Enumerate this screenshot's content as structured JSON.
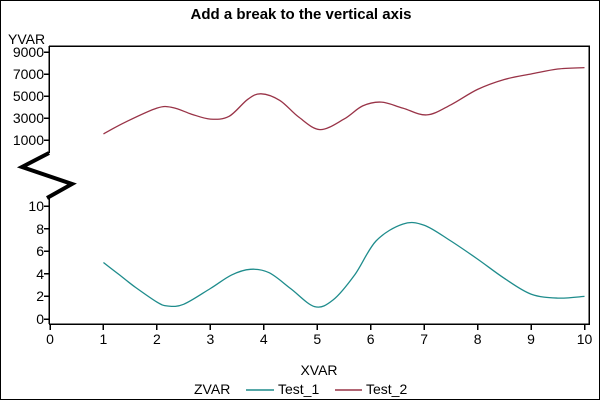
{
  "title": "Add a break to the vertical axis",
  "y_axis_title": "YVAR",
  "x_axis_title": "XVAR",
  "legend": {
    "title": "ZVAR",
    "entries": [
      {
        "label": "Test_1",
        "color": "#1E8C8C"
      },
      {
        "label": "Test_2",
        "color": "#993347"
      }
    ]
  },
  "colors": {
    "background": "#FFFFFF",
    "frame": "#000000",
    "text": "#000000",
    "series_test_1": "#1E8C8C",
    "series_test_2": "#993347"
  },
  "icons": {
    "axis_break": "axis-break-zigzag-icon"
  },
  "chart_data": {
    "type": "line",
    "title": "Add a break to the vertical axis",
    "xlabel": "XVAR",
    "ylabel": "YVAR",
    "legend_title": "ZVAR",
    "legend_position": "bottom",
    "grid": false,
    "x_ticks": [
      0,
      1,
      2,
      3,
      4,
      5,
      6,
      7,
      8,
      9,
      10
    ],
    "xlim": [
      0,
      10
    ],
    "axis_break": {
      "between_labels": [
        "1000",
        "10"
      ],
      "icon": "axis-break-zigzag-icon"
    },
    "upper_axis": {
      "ticks": [
        1000,
        3000,
        5000,
        7000,
        9000
      ],
      "range": [
        1000,
        9000
      ]
    },
    "lower_axis": {
      "ticks": [
        0,
        2,
        4,
        6,
        8,
        10
      ],
      "range": [
        0,
        10
      ]
    },
    "series": [
      {
        "name": "Test_1",
        "axis": "lower",
        "color": "#1E8C8C",
        "x": [
          1,
          1.3,
          1.6,
          2.0,
          2.2,
          2.5,
          3.0,
          3.4,
          3.75,
          4.1,
          4.5,
          4.95,
          5.3,
          5.7,
          6.1,
          6.6,
          7.0,
          7.5,
          8.0,
          8.5,
          9.0,
          9.5,
          10
        ],
        "values": [
          5.0,
          3.9,
          2.8,
          1.5,
          1.15,
          1.3,
          2.7,
          3.9,
          4.4,
          4.1,
          2.7,
          1.1,
          1.7,
          3.9,
          6.9,
          8.4,
          8.3,
          6.9,
          5.3,
          3.6,
          2.2,
          1.85,
          2.0
        ]
      },
      {
        "name": "Test_2",
        "axis": "upper",
        "color": "#993347",
        "x": [
          1,
          1.4,
          2.0,
          2.3,
          2.65,
          3.0,
          3.35,
          3.7,
          3.95,
          4.3,
          4.65,
          5.05,
          5.5,
          5.85,
          6.2,
          6.6,
          7.05,
          7.5,
          8.0,
          8.5,
          9.0,
          9.5,
          10
        ],
        "values": [
          1550,
          2600,
          3900,
          3950,
          3350,
          2900,
          3150,
          4700,
          5200,
          4600,
          3100,
          1950,
          2900,
          4100,
          4450,
          3900,
          3280,
          4200,
          5600,
          6500,
          7000,
          7450,
          7580
        ]
      }
    ]
  }
}
